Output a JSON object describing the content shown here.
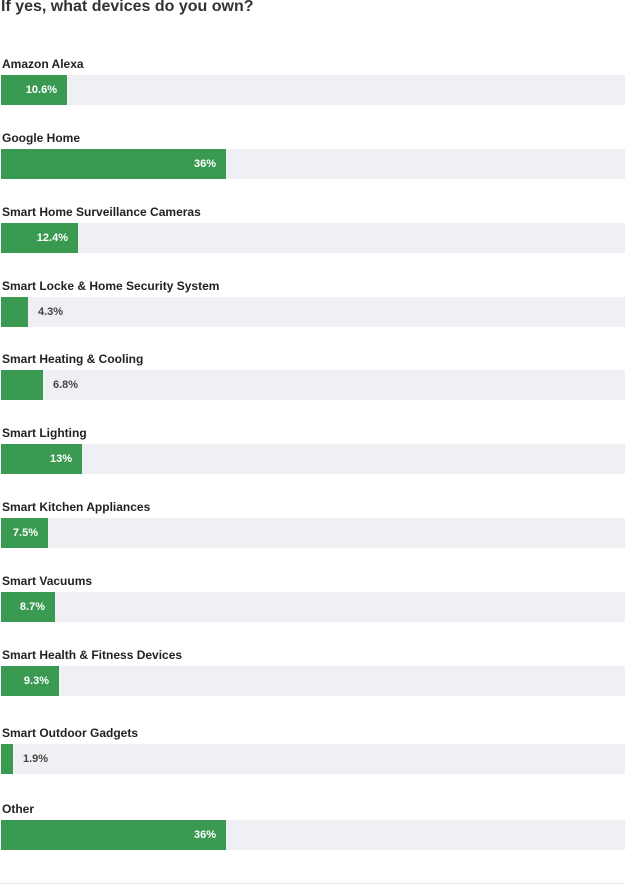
{
  "question": "If yes, what devices do you own?",
  "colors": {
    "bar": "#3a9a52",
    "track": "#eff0f3"
  },
  "chart_data": {
    "type": "bar",
    "orientation": "horizontal",
    "xlim": [
      0,
      100
    ],
    "unit": "%",
    "categories": [
      "Amazon Alexa",
      "Google Home",
      "Smart Home Surveillance Cameras",
      "Smart Locke & Home Security System",
      "Smart Heating & Cooling",
      "Smart Lighting",
      "Smart Kitchen Appliances",
      "Smart Vacuums",
      "Smart Health & Fitness Devices",
      "Smart Outdoor Gadgets",
      "Other"
    ],
    "values": [
      10.6,
      36,
      12.4,
      4.3,
      6.8,
      13,
      7.5,
      8.7,
      9.3,
      1.9,
      36
    ],
    "labels": [
      "10.6%",
      "36%",
      "12.4%",
      "4.3%",
      "6.8%",
      "13%",
      "7.5%",
      "8.7%",
      "9.3%",
      "1.9%",
      "36%"
    ]
  }
}
